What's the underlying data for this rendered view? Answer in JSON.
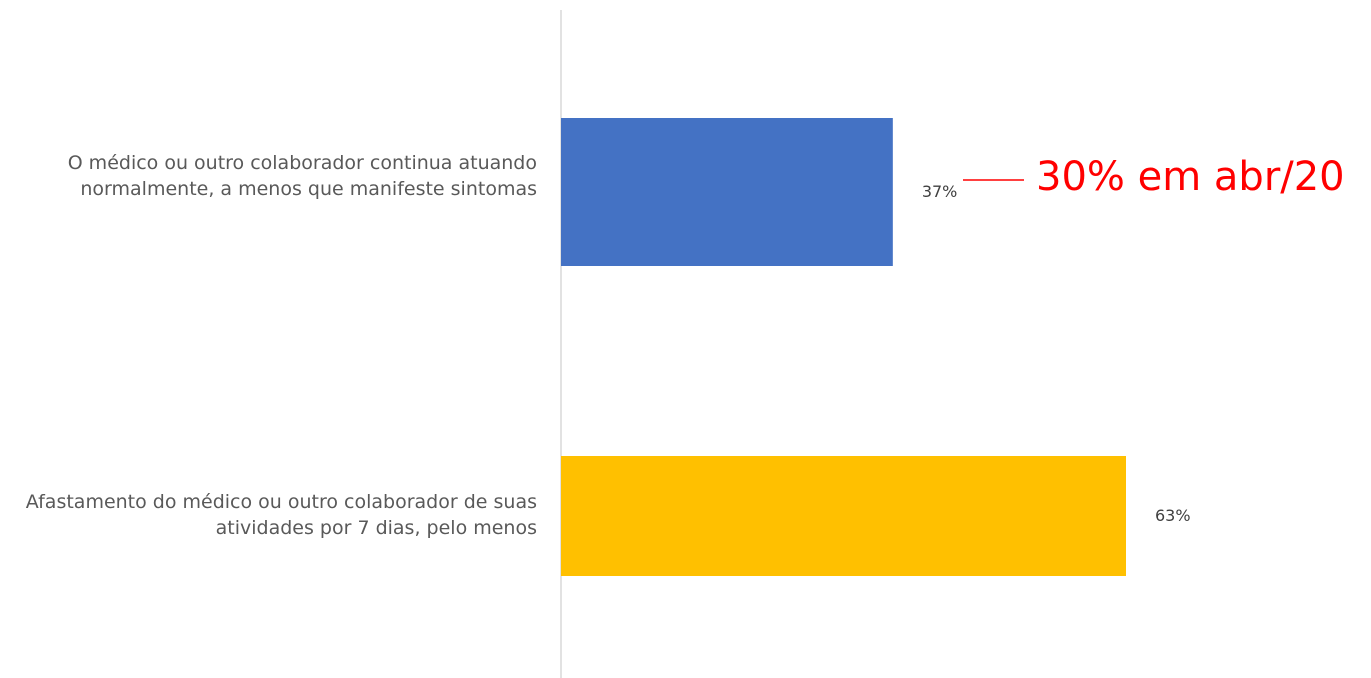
{
  "chart_data": {
    "type": "bar",
    "orientation": "horizontal",
    "categories": [
      "O médico ou outro colaborador continua atuando normalmente, a menos que manifeste sintomas",
      "Afastamento do médico ou outro colaborador de suas atividades por 7 dias, pelo menos"
    ],
    "values": [
      37,
      63
    ],
    "data_labels": [
      "37%",
      "63%"
    ],
    "colors": [
      "#4472C4",
      "#FFC000"
    ],
    "xlim": [
      0,
      100
    ],
    "grid": false,
    "legend": "none",
    "annotation": {
      "text": "30% em abr/20",
      "color": "#FF0000",
      "target_category_index": 0
    }
  }
}
